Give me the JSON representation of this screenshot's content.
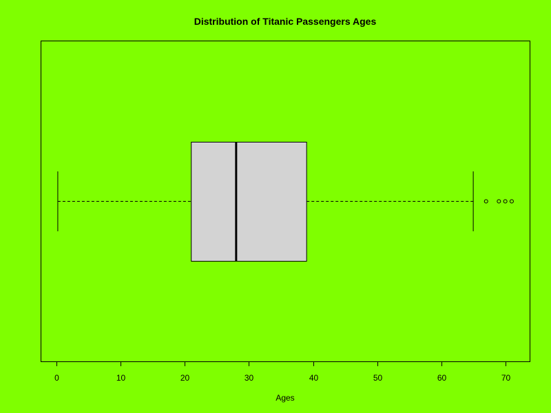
{
  "chart_data": {
    "type": "boxplot",
    "orientation": "horizontal",
    "title": "Distribution of Titanic Passengers Ages",
    "xlabel": "Ages",
    "ylabel": "",
    "xlim": [
      -2.4,
      73.8
    ],
    "x_ticks": [
      0,
      10,
      20,
      30,
      40,
      50,
      60,
      70
    ],
    "x_tick_labels": [
      "0",
      "10",
      "20",
      "30",
      "40",
      "50",
      "60",
      "70"
    ],
    "grid": false,
    "legend": "none",
    "box": {
      "whisker_low": 0.17,
      "q1": 21,
      "median": 28,
      "q3": 39,
      "whisker_high": 65,
      "outliers": [
        67,
        69,
        70,
        71
      ]
    },
    "colors": {
      "background": "#7FFF00",
      "box_fill": "#D3D3D3",
      "stroke": "#000000"
    }
  }
}
